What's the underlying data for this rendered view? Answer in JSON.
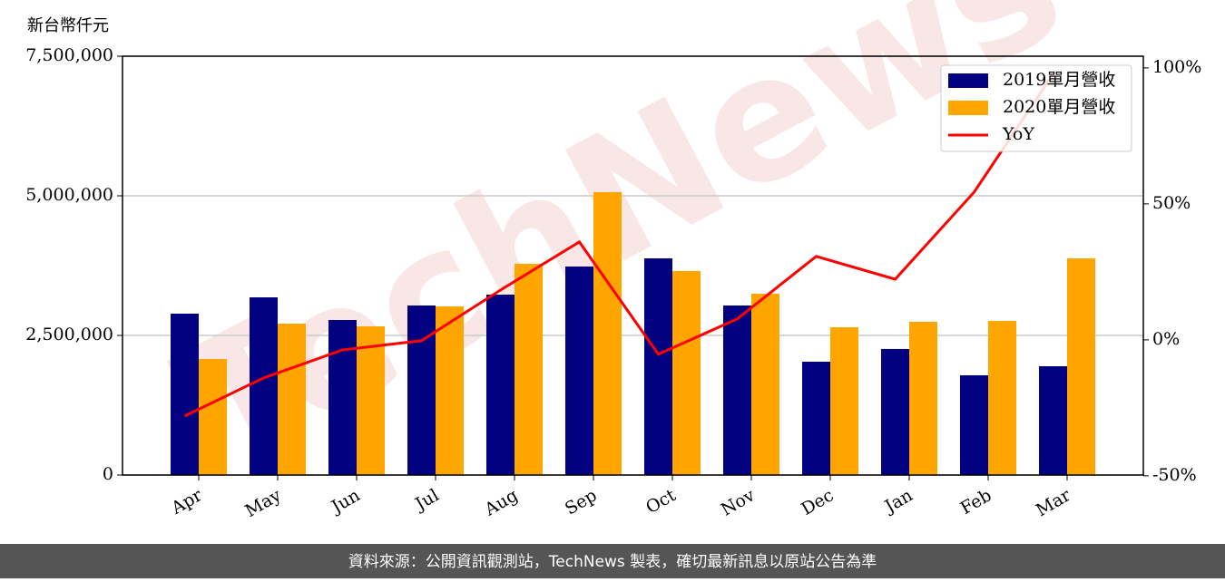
{
  "chart_data": {
    "type": "bar_line",
    "y_label": "新台幣仟元",
    "watermark": "TechNews",
    "footer": "資料來源：公開資訊觀測站，TechNews 製表，確切最新訊息以原站公告為準",
    "categories": [
      "Apr",
      "May",
      "Jun",
      "Jul",
      "Aug",
      "Sep",
      "Oct",
      "Nov",
      "Dec",
      "Jan",
      "Feb",
      "Mar"
    ],
    "series": [
      {
        "name": "2019單月營收",
        "color": "#000080",
        "type": "bar",
        "values": [
          2890000,
          3182000,
          2776000,
          3036000,
          3231000,
          3734000,
          3880000,
          3036000,
          2029000,
          2257000,
          1786000,
          1948000
        ]
      },
      {
        "name": "2020單月營收",
        "color": "#ffa500",
        "type": "bar",
        "values": [
          2078000,
          2711000,
          2662000,
          3020000,
          3782000,
          5065000,
          3653000,
          3247000,
          2646000,
          2744000,
          2760000,
          3880000
        ]
      },
      {
        "name": "YoY",
        "color": "#ff0000",
        "type": "line",
        "axis": "y2",
        "values": [
          -28,
          -14,
          -3.7,
          -0.3,
          18.3,
          36,
          -5.3,
          7.7,
          30.7,
          22.3,
          54.3,
          97.7
        ]
      }
    ],
    "ylim": [
      0,
      7500000
    ],
    "yticks": [
      0,
      {
        "value": 2500000,
        "label": "2,500,000"
      },
      {
        "value": 5000000,
        "label": "5,000,000"
      },
      {
        "value": 7500000,
        "label": "7,500,000"
      }
    ],
    "y2lim": [
      -49.7,
      104.3
    ],
    "y2ticks": [
      {
        "value": -50,
        "label": "-50%"
      },
      {
        "value": 0,
        "label": "0%"
      },
      {
        "value": 50,
        "label": "50%"
      },
      {
        "value": 100,
        "label": "100%"
      }
    ],
    "grid": true,
    "legend": "upper right"
  }
}
